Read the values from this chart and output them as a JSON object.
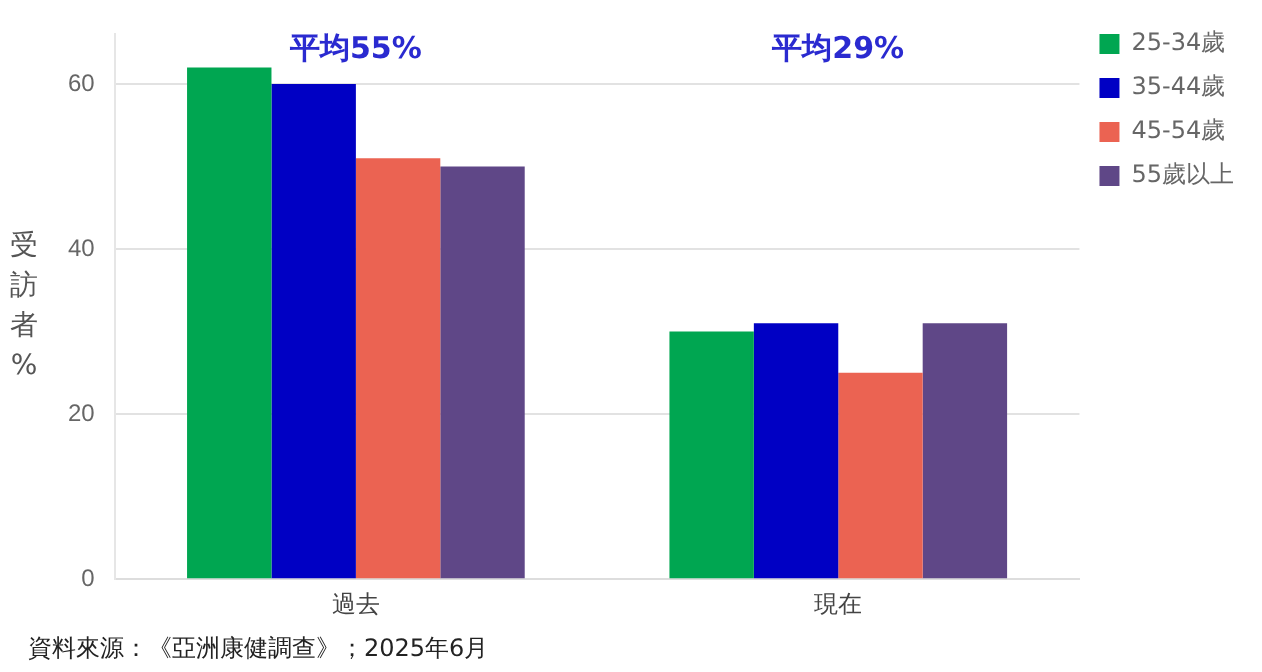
{
  "chart_data": {
    "type": "bar",
    "ylabel": "受訪者%",
    "categories": [
      "過去",
      "現在"
    ],
    "series": [
      {
        "name": "25-34歲",
        "color": "#00a651",
        "values": [
          62,
          30
        ]
      },
      {
        "name": "35-44歲",
        "color": "#0000c4",
        "values": [
          60,
          31
        ]
      },
      {
        "name": "45-54歲",
        "color": "#eb6352",
        "values": [
          51,
          25
        ]
      },
      {
        "name": "55歲以上",
        "color": "#5f4787",
        "values": [
          50,
          31
        ]
      }
    ],
    "ylim": [
      0,
      66
    ],
    "yticks": [
      0,
      20,
      40,
      60
    ],
    "grid": "y",
    "legend": "top right",
    "annotations": [
      "平均55%",
      "平均29%",
      "資料來源：《亞洲康健調查》；2025年6月"
    ]
  }
}
